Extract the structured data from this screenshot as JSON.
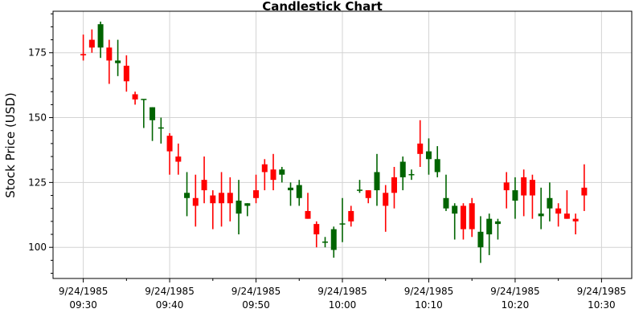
{
  "chart_data": {
    "type": "candlestick",
    "title": "Candlestick Chart",
    "xlabel": "",
    "ylabel": "Stock Price (USD)",
    "ylim": [
      88,
      191
    ],
    "xlim_minutes": [
      -3.5,
      63.5
    ],
    "date_label": "9/24/1985",
    "x_ticks": [
      {
        "minute": 0,
        "date": "9/24/1985",
        "time": "09:30"
      },
      {
        "minute": 10,
        "date": "9/24/1985",
        "time": "09:40"
      },
      {
        "minute": 20,
        "date": "9/24/1985",
        "time": "09:50"
      },
      {
        "minute": 30,
        "date": "9/24/1985",
        "time": "10:00"
      },
      {
        "minute": 40,
        "date": "9/24/1985",
        "time": "10:10"
      },
      {
        "minute": 50,
        "date": "9/24/1985",
        "time": "10:20"
      },
      {
        "minute": 60,
        "date": "9/24/1985",
        "time": "10:30"
      }
    ],
    "y_ticks": [
      100,
      125,
      150,
      175
    ],
    "grid": true,
    "colors": {
      "up": "#006400",
      "down": "#ff0000"
    },
    "candles": [
      {
        "minute": 0,
        "open": 174.5,
        "high": 182,
        "low": 172,
        "close": 174
      },
      {
        "minute": 1,
        "open": 180,
        "high": 184,
        "low": 175,
        "close": 177
      },
      {
        "minute": 2,
        "open": 177,
        "high": 187,
        "low": 173,
        "close": 186
      },
      {
        "minute": 3,
        "open": 177,
        "high": 180,
        "low": 163,
        "close": 172
      },
      {
        "minute": 4,
        "open": 171,
        "high": 180,
        "low": 166,
        "close": 172
      },
      {
        "minute": 5,
        "open": 170,
        "high": 174,
        "low": 160,
        "close": 164
      },
      {
        "minute": 6,
        "open": 159,
        "high": 160,
        "low": 155,
        "close": 157
      },
      {
        "minute": 7,
        "open": 157,
        "high": 157,
        "low": 146,
        "close": 157
      },
      {
        "minute": 8,
        "open": 149,
        "high": 154,
        "low": 141,
        "close": 154
      },
      {
        "minute": 9,
        "open": 146,
        "high": 150,
        "low": 140,
        "close": 146
      },
      {
        "minute": 10,
        "open": 143,
        "high": 144,
        "low": 128,
        "close": 137
      },
      {
        "minute": 11,
        "open": 135,
        "high": 140,
        "low": 128,
        "close": 133
      },
      {
        "minute": 12,
        "open": 119,
        "high": 129,
        "low": 112,
        "close": 121
      },
      {
        "minute": 13,
        "open": 119,
        "high": 128,
        "low": 108,
        "close": 116
      },
      {
        "minute": 14,
        "open": 126,
        "high": 135,
        "low": 117,
        "close": 122
      },
      {
        "minute": 15,
        "open": 120,
        "high": 122,
        "low": 107,
        "close": 117
      },
      {
        "minute": 16,
        "open": 121,
        "high": 129,
        "low": 108,
        "close": 117
      },
      {
        "minute": 17,
        "open": 121,
        "high": 127,
        "low": 110,
        "close": 117
      },
      {
        "minute": 18,
        "open": 113,
        "high": 126,
        "low": 105,
        "close": 118
      },
      {
        "minute": 19,
        "open": 116,
        "high": 117,
        "low": 112,
        "close": 117
      },
      {
        "minute": 20,
        "open": 122,
        "high": 128,
        "low": 117,
        "close": 119
      },
      {
        "minute": 21,
        "open": 132,
        "high": 134,
        "low": 122,
        "close": 129
      },
      {
        "minute": 22,
        "open": 130,
        "high": 136,
        "low": 122,
        "close": 126
      },
      {
        "minute": 23,
        "open": 128,
        "high": 131,
        "low": 125,
        "close": 130
      },
      {
        "minute": 24,
        "open": 122,
        "high": 125,
        "low": 116,
        "close": 123
      },
      {
        "minute": 25,
        "open": 119,
        "high": 126,
        "low": 116,
        "close": 124
      },
      {
        "minute": 26,
        "open": 114,
        "high": 121,
        "low": 111,
        "close": 111
      },
      {
        "minute": 27,
        "open": 109,
        "high": 110,
        "low": 100,
        "close": 105
      },
      {
        "minute": 28,
        "open": 102,
        "high": 104,
        "low": 100,
        "close": 102
      },
      {
        "minute": 29,
        "open": 99,
        "high": 108,
        "low": 96,
        "close": 107
      },
      {
        "minute": 30,
        "open": 109,
        "high": 119,
        "low": 102,
        "close": 109
      },
      {
        "minute": 31,
        "open": 114,
        "high": 116,
        "low": 108,
        "close": 110
      },
      {
        "minute": 32,
        "open": 122,
        "high": 126,
        "low": 121,
        "close": 122
      },
      {
        "minute": 33,
        "open": 122,
        "high": 122,
        "low": 117,
        "close": 119
      },
      {
        "minute": 34,
        "open": 122,
        "high": 136,
        "low": 116,
        "close": 129
      },
      {
        "minute": 35,
        "open": 121,
        "high": 124,
        "low": 106,
        "close": 116
      },
      {
        "minute": 36,
        "open": 127,
        "high": 131,
        "low": 115,
        "close": 121
      },
      {
        "minute": 37,
        "open": 127,
        "high": 135,
        "low": 122,
        "close": 133
      },
      {
        "minute": 38,
        "open": 128,
        "high": 130,
        "low": 126,
        "close": 128
      },
      {
        "minute": 39,
        "open": 140,
        "high": 149,
        "low": 131,
        "close": 136
      },
      {
        "minute": 40,
        "open": 134,
        "high": 142,
        "low": 128,
        "close": 137
      },
      {
        "minute": 41,
        "open": 129,
        "high": 139,
        "low": 127,
        "close": 134
      },
      {
        "minute": 42,
        "open": 115,
        "high": 128,
        "low": 114,
        "close": 119
      },
      {
        "minute": 43,
        "open": 113,
        "high": 117,
        "low": 103,
        "close": 116
      },
      {
        "minute": 44,
        "open": 116,
        "high": 117,
        "low": 103,
        "close": 107
      },
      {
        "minute": 45,
        "open": 117,
        "high": 119,
        "low": 104,
        "close": 107
      },
      {
        "minute": 46,
        "open": 100,
        "high": 112,
        "low": 94,
        "close": 106
      },
      {
        "minute": 47,
        "open": 105,
        "high": 113,
        "low": 97,
        "close": 111
      },
      {
        "minute": 48,
        "open": 109,
        "high": 111,
        "low": 103,
        "close": 110
      },
      {
        "minute": 49,
        "open": 125,
        "high": 129,
        "low": 115,
        "close": 122
      },
      {
        "minute": 50,
        "open": 118,
        "high": 127,
        "low": 111,
        "close": 122
      },
      {
        "minute": 51,
        "open": 127,
        "high": 130,
        "low": 112,
        "close": 120
      },
      {
        "minute": 52,
        "open": 126,
        "high": 128,
        "low": 111,
        "close": 120
      },
      {
        "minute": 53,
        "open": 112,
        "high": 123,
        "low": 107,
        "close": 113
      },
      {
        "minute": 54,
        "open": 115,
        "high": 125,
        "low": 110,
        "close": 119
      },
      {
        "minute": 55,
        "open": 115,
        "high": 117,
        "low": 108,
        "close": 113
      },
      {
        "minute": 56,
        "open": 113,
        "high": 122,
        "low": 111,
        "close": 111
      },
      {
        "minute": 57,
        "open": 111,
        "high": 113,
        "low": 105,
        "close": 110
      },
      {
        "minute": 58,
        "open": 123,
        "high": 132,
        "low": 114,
        "close": 120
      }
    ]
  }
}
